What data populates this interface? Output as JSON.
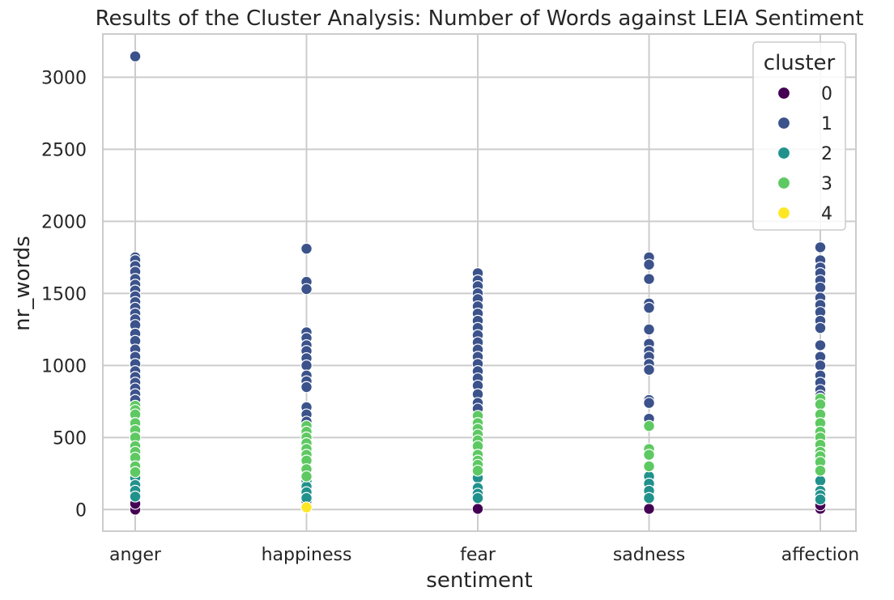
{
  "chart_data": {
    "type": "scatter",
    "title": "Results of the Cluster Analysis: Number of Words against LEIA Sentiment",
    "xlabel": "sentiment",
    "ylabel": "nr_words",
    "categories": [
      "anger",
      "happiness",
      "fear",
      "sadness",
      "affection"
    ],
    "ylim": [
      -150,
      3300
    ],
    "yticks": [
      0,
      500,
      1000,
      1500,
      2000,
      2500,
      3000
    ],
    "grid": true,
    "legend": {
      "title": "cluster",
      "placement": "top-right"
    },
    "series": [
      {
        "name": "0",
        "color": "#440154",
        "points": [
          {
            "x": "anger",
            "y": 0
          },
          {
            "x": "anger",
            "y": 40
          },
          {
            "x": "happiness",
            "y": 60
          },
          {
            "x": "fear",
            "y": 5
          },
          {
            "x": "sadness",
            "y": 5
          },
          {
            "x": "affection",
            "y": 5
          },
          {
            "x": "affection",
            "y": 30
          }
        ]
      },
      {
        "name": "1",
        "color": "#3b528b",
        "points": [
          {
            "x": "anger",
            "y": 3145
          },
          {
            "x": "anger",
            "y": 1750
          },
          {
            "x": "anger",
            "y": 1730
          },
          {
            "x": "anger",
            "y": 1690
          },
          {
            "x": "anger",
            "y": 1650
          },
          {
            "x": "anger",
            "y": 1600
          },
          {
            "x": "anger",
            "y": 1560
          },
          {
            "x": "anger",
            "y": 1520
          },
          {
            "x": "anger",
            "y": 1480
          },
          {
            "x": "anger",
            "y": 1440
          },
          {
            "x": "anger",
            "y": 1400
          },
          {
            "x": "anger",
            "y": 1360
          },
          {
            "x": "anger",
            "y": 1320
          },
          {
            "x": "anger",
            "y": 1280
          },
          {
            "x": "anger",
            "y": 1220
          },
          {
            "x": "anger",
            "y": 1170
          },
          {
            "x": "anger",
            "y": 1110
          },
          {
            "x": "anger",
            "y": 1060
          },
          {
            "x": "anger",
            "y": 1010
          },
          {
            "x": "anger",
            "y": 960
          },
          {
            "x": "anger",
            "y": 920
          },
          {
            "x": "anger",
            "y": 880
          },
          {
            "x": "anger",
            "y": 840
          },
          {
            "x": "anger",
            "y": 800
          },
          {
            "x": "anger",
            "y": 760
          },
          {
            "x": "happiness",
            "y": 1810
          },
          {
            "x": "happiness",
            "y": 1580
          },
          {
            "x": "happiness",
            "y": 1530
          },
          {
            "x": "happiness",
            "y": 1230
          },
          {
            "x": "happiness",
            "y": 1190
          },
          {
            "x": "happiness",
            "y": 1140
          },
          {
            "x": "happiness",
            "y": 1100
          },
          {
            "x": "happiness",
            "y": 1050
          },
          {
            "x": "happiness",
            "y": 1000
          },
          {
            "x": "happiness",
            "y": 930
          },
          {
            "x": "happiness",
            "y": 890
          },
          {
            "x": "happiness",
            "y": 850
          },
          {
            "x": "happiness",
            "y": 710
          },
          {
            "x": "happiness",
            "y": 660
          },
          {
            "x": "happiness",
            "y": 610
          },
          {
            "x": "fear",
            "y": 1640
          },
          {
            "x": "fear",
            "y": 1590
          },
          {
            "x": "fear",
            "y": 1550
          },
          {
            "x": "fear",
            "y": 1500
          },
          {
            "x": "fear",
            "y": 1460
          },
          {
            "x": "fear",
            "y": 1410
          },
          {
            "x": "fear",
            "y": 1360
          },
          {
            "x": "fear",
            "y": 1310
          },
          {
            "x": "fear",
            "y": 1260
          },
          {
            "x": "fear",
            "y": 1210
          },
          {
            "x": "fear",
            "y": 1160
          },
          {
            "x": "fear",
            "y": 1110
          },
          {
            "x": "fear",
            "y": 1060
          },
          {
            "x": "fear",
            "y": 1010
          },
          {
            "x": "fear",
            "y": 960
          },
          {
            "x": "fear",
            "y": 910
          },
          {
            "x": "fear",
            "y": 860
          },
          {
            "x": "fear",
            "y": 800
          },
          {
            "x": "fear",
            "y": 740
          },
          {
            "x": "fear",
            "y": 700
          },
          {
            "x": "sadness",
            "y": 1750
          },
          {
            "x": "sadness",
            "y": 1700
          },
          {
            "x": "sadness",
            "y": 1600
          },
          {
            "x": "sadness",
            "y": 1430
          },
          {
            "x": "sadness",
            "y": 1400
          },
          {
            "x": "sadness",
            "y": 1250
          },
          {
            "x": "sadness",
            "y": 1150
          },
          {
            "x": "sadness",
            "y": 1100
          },
          {
            "x": "sadness",
            "y": 1060
          },
          {
            "x": "sadness",
            "y": 1010
          },
          {
            "x": "sadness",
            "y": 970
          },
          {
            "x": "sadness",
            "y": 760
          },
          {
            "x": "sadness",
            "y": 740
          },
          {
            "x": "sadness",
            "y": 630
          },
          {
            "x": "affection",
            "y": 1820
          },
          {
            "x": "affection",
            "y": 1730
          },
          {
            "x": "affection",
            "y": 1680
          },
          {
            "x": "affection",
            "y": 1640
          },
          {
            "x": "affection",
            "y": 1590
          },
          {
            "x": "affection",
            "y": 1540
          },
          {
            "x": "affection",
            "y": 1470
          },
          {
            "x": "affection",
            "y": 1420
          },
          {
            "x": "affection",
            "y": 1370
          },
          {
            "x": "affection",
            "y": 1310
          },
          {
            "x": "affection",
            "y": 1260
          },
          {
            "x": "affection",
            "y": 1140
          },
          {
            "x": "affection",
            "y": 1060
          },
          {
            "x": "affection",
            "y": 1000
          },
          {
            "x": "affection",
            "y": 930
          },
          {
            "x": "affection",
            "y": 880
          },
          {
            "x": "affection",
            "y": 830
          },
          {
            "x": "affection",
            "y": 790
          }
        ]
      },
      {
        "name": "2",
        "color": "#21918c",
        "points": [
          {
            "x": "anger",
            "y": 220
          },
          {
            "x": "anger",
            "y": 170
          },
          {
            "x": "anger",
            "y": 130
          },
          {
            "x": "anger",
            "y": 90
          },
          {
            "x": "happiness",
            "y": 200
          },
          {
            "x": "happiness",
            "y": 160
          },
          {
            "x": "happiness",
            "y": 120
          },
          {
            "x": "happiness",
            "y": 80
          },
          {
            "x": "fear",
            "y": 220
          },
          {
            "x": "fear",
            "y": 150
          },
          {
            "x": "fear",
            "y": 110
          },
          {
            "x": "fear",
            "y": 80
          },
          {
            "x": "sadness",
            "y": 230
          },
          {
            "x": "sadness",
            "y": 180
          },
          {
            "x": "sadness",
            "y": 130
          },
          {
            "x": "sadness",
            "y": 80
          },
          {
            "x": "affection",
            "y": 200
          },
          {
            "x": "affection",
            "y": 130
          },
          {
            "x": "affection",
            "y": 100
          },
          {
            "x": "affection",
            "y": 70
          }
        ]
      },
      {
        "name": "3",
        "color": "#5ec962",
        "points": [
          {
            "x": "anger",
            "y": 720
          },
          {
            "x": "anger",
            "y": 690
          },
          {
            "x": "anger",
            "y": 660
          },
          {
            "x": "anger",
            "y": 600
          },
          {
            "x": "anger",
            "y": 550
          },
          {
            "x": "anger",
            "y": 500
          },
          {
            "x": "anger",
            "y": 440
          },
          {
            "x": "anger",
            "y": 400
          },
          {
            "x": "anger",
            "y": 360
          },
          {
            "x": "anger",
            "y": 300
          },
          {
            "x": "anger",
            "y": 260
          },
          {
            "x": "happiness",
            "y": 580
          },
          {
            "x": "happiness",
            "y": 540
          },
          {
            "x": "happiness",
            "y": 500
          },
          {
            "x": "happiness",
            "y": 460
          },
          {
            "x": "happiness",
            "y": 420
          },
          {
            "x": "happiness",
            "y": 380
          },
          {
            "x": "happiness",
            "y": 340
          },
          {
            "x": "happiness",
            "y": 280
          },
          {
            "x": "happiness",
            "y": 230
          },
          {
            "x": "fear",
            "y": 650
          },
          {
            "x": "fear",
            "y": 600
          },
          {
            "x": "fear",
            "y": 560
          },
          {
            "x": "fear",
            "y": 520
          },
          {
            "x": "fear",
            "y": 480
          },
          {
            "x": "fear",
            "y": 440
          },
          {
            "x": "fear",
            "y": 380
          },
          {
            "x": "fear",
            "y": 340
          },
          {
            "x": "fear",
            "y": 310
          },
          {
            "x": "fear",
            "y": 270
          },
          {
            "x": "sadness",
            "y": 580
          },
          {
            "x": "sadness",
            "y": 420
          },
          {
            "x": "sadness",
            "y": 380
          },
          {
            "x": "sadness",
            "y": 300
          },
          {
            "x": "affection",
            "y": 770
          },
          {
            "x": "affection",
            "y": 730
          },
          {
            "x": "affection",
            "y": 660
          },
          {
            "x": "affection",
            "y": 600
          },
          {
            "x": "affection",
            "y": 540
          },
          {
            "x": "affection",
            "y": 500
          },
          {
            "x": "affection",
            "y": 450
          },
          {
            "x": "affection",
            "y": 400
          },
          {
            "x": "affection",
            "y": 370
          },
          {
            "x": "affection",
            "y": 330
          },
          {
            "x": "affection",
            "y": 270
          }
        ]
      },
      {
        "name": "4",
        "color": "#fde725",
        "points": [
          {
            "x": "happiness",
            "y": 15
          }
        ]
      }
    ]
  }
}
